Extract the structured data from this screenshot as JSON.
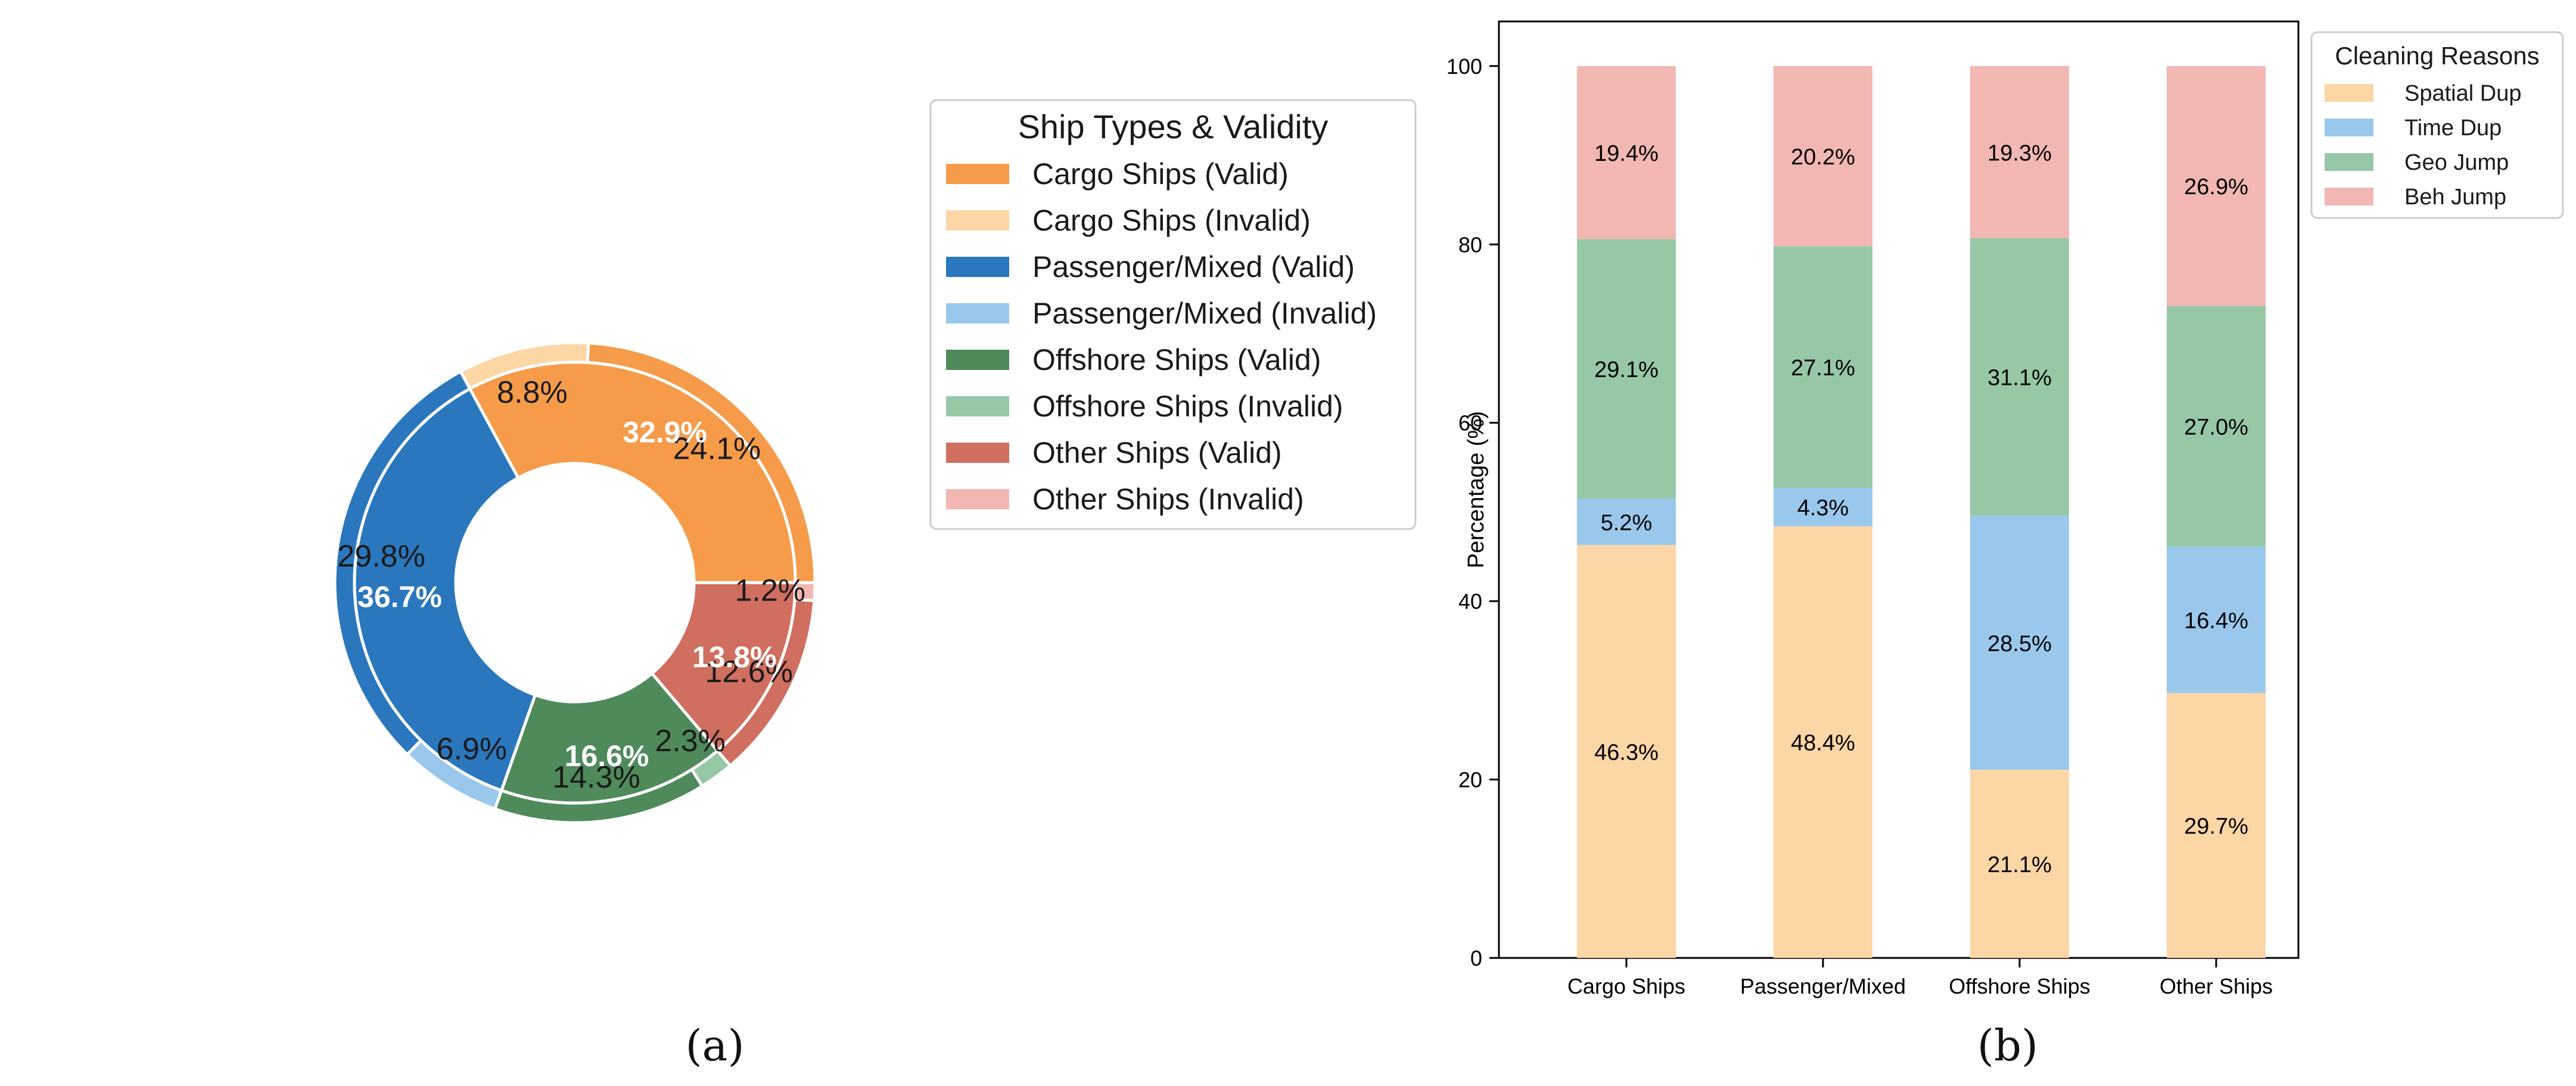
{
  "panel_a": {
    "caption": "(a)",
    "legend_title": "Ship Types & Validity",
    "legend_items": [
      {
        "label": "Cargo Ships (Valid)",
        "color": "#f59b4a"
      },
      {
        "label": "Cargo Ships (Invalid)",
        "color": "#fdd6a5"
      },
      {
        "label": "Passenger/Mixed (Valid)",
        "color": "#2a77be"
      },
      {
        "label": "Passenger/Mixed (Invalid)",
        "color": "#99c8ec"
      },
      {
        "label": "Offshore Ships (Valid)",
        "color": "#4f8a5b"
      },
      {
        "label": "Offshore Ships (Invalid)",
        "color": "#97c8a6"
      },
      {
        "label": "Other Ships (Valid)",
        "color": "#d06e5f"
      },
      {
        "label": "Other Ships (Invalid)",
        "color": "#f2b7b2"
      }
    ]
  },
  "panel_b": {
    "caption": "(b)"
  },
  "chart_data": [
    {
      "type": "pie",
      "variant": "nested-donut",
      "title": "",
      "inner_ring": {
        "labels": [
          "Cargo Ships",
          "Passenger/Mixed",
          "Offshore Ships",
          "Other Ships"
        ],
        "values": [
          32.9,
          36.7,
          16.6,
          13.8
        ],
        "value_labels": [
          "32.9%",
          "36.7%",
          "16.6%",
          "13.8%"
        ],
        "colors": [
          "#f59b4a",
          "#2a77be",
          "#4f8a5b",
          "#d06e5f"
        ]
      },
      "outer_ring": {
        "labels": [
          "Cargo Ships (Valid)",
          "Cargo Ships (Invalid)",
          "Passenger/Mixed (Valid)",
          "Passenger/Mixed (Invalid)",
          "Offshore Ships (Valid)",
          "Offshore Ships (Invalid)",
          "Other Ships (Valid)",
          "Other Ships (Invalid)"
        ],
        "values": [
          24.1,
          8.8,
          29.8,
          6.9,
          14.3,
          2.3,
          12.6,
          1.2
        ],
        "value_labels": [
          "24.1%",
          "8.8%",
          "29.8%",
          "6.9%",
          "14.3%",
          "2.3%",
          "12.6%",
          "1.2%"
        ],
        "colors": [
          "#f59b4a",
          "#fdd6a5",
          "#2a77be",
          "#99c8ec",
          "#4f8a5b",
          "#97c8a6",
          "#d06e5f",
          "#f2b7b2"
        ]
      },
      "start_angle_deg": 0,
      "direction": "counterclockwise",
      "legend_title": "Ship Types & Validity",
      "legend_position": "right"
    },
    {
      "type": "bar",
      "stacked": true,
      "title": "",
      "xlabel": "",
      "ylabel": "Percentage (%)",
      "ylim": [
        0,
        105
      ],
      "yticks": [
        0,
        20,
        40,
        60,
        80,
        100
      ],
      "categories": [
        "Cargo Ships",
        "Passenger/Mixed",
        "Offshore Ships",
        "Other Ships"
      ],
      "series": [
        {
          "name": "Spatial Dup",
          "color": "#fdd6a5",
          "values": [
            46.3,
            48.4,
            21.1,
            29.7
          ],
          "labels": [
            "46.3%",
            "48.4%",
            "21.1%",
            "29.7%"
          ]
        },
        {
          "name": "Time Dup",
          "color": "#99c8ec",
          "values": [
            5.2,
            4.3,
            28.5,
            16.4
          ],
          "labels": [
            "5.2%",
            "4.3%",
            "28.5%",
            "16.4%"
          ]
        },
        {
          "name": "Geo Jump",
          "color": "#97c8a6",
          "values": [
            29.1,
            27.1,
            31.1,
            27.0
          ],
          "labels": [
            "29.1%",
            "27.1%",
            "31.1%",
            "27.0%"
          ]
        },
        {
          "name": "Beh Jump",
          "color": "#f2b7b2",
          "values": [
            19.4,
            20.2,
            19.3,
            26.9
          ],
          "labels": [
            "19.4%",
            "20.2%",
            "19.3%",
            "26.9%"
          ]
        }
      ],
      "legend_title": "Cleaning Reasons",
      "legend_position": "top-right outside"
    }
  ]
}
